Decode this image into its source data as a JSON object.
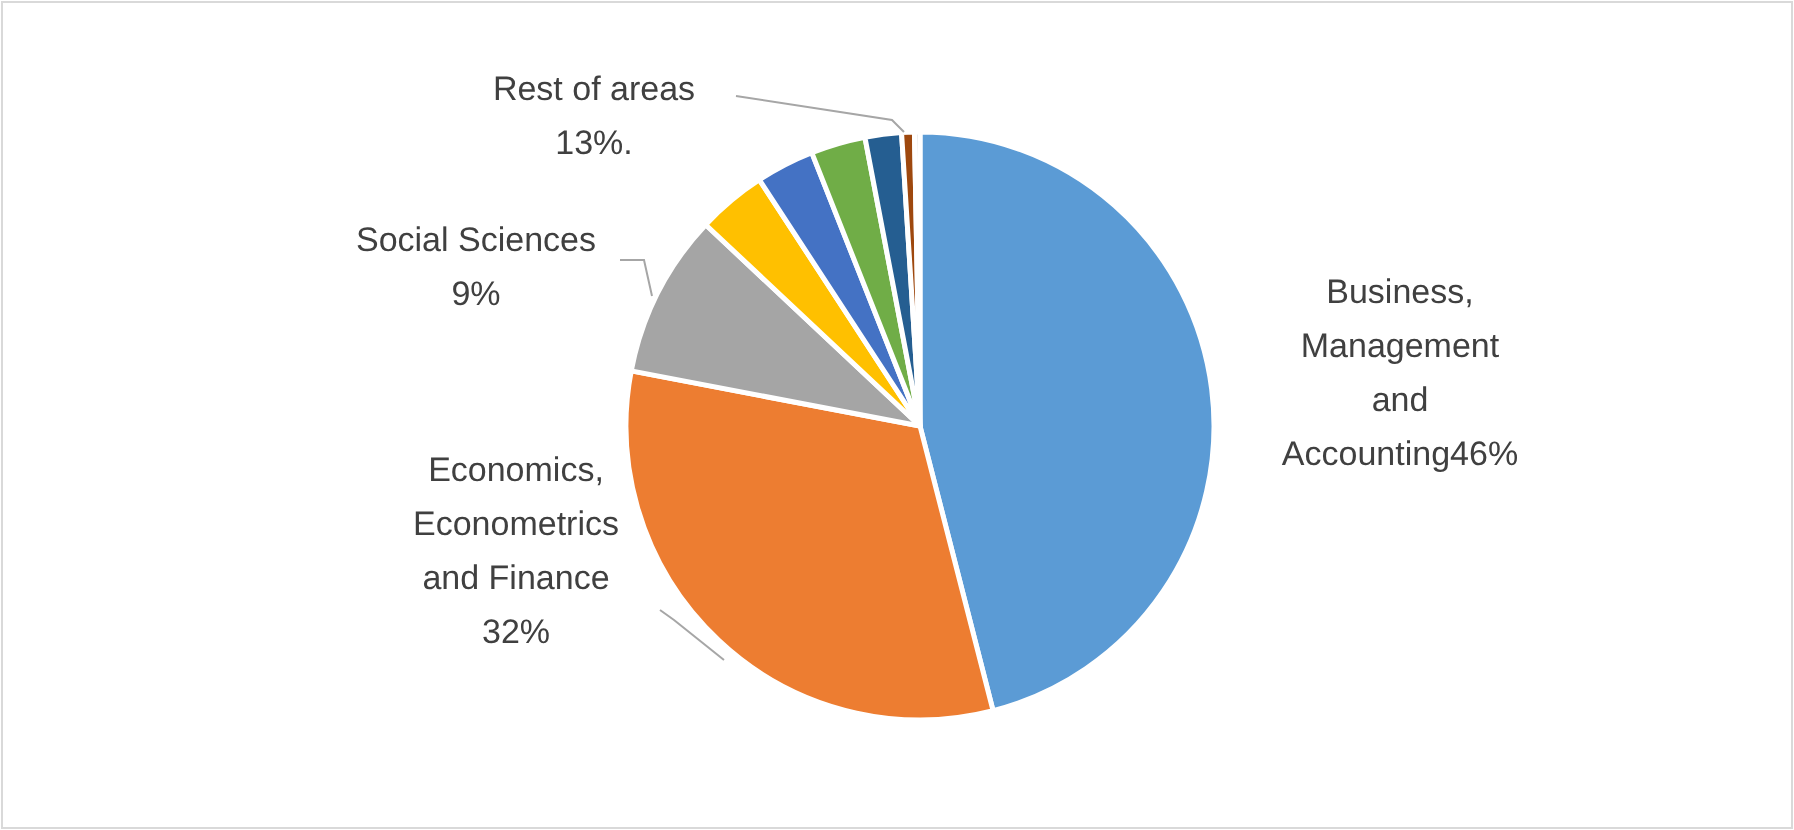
{
  "chart_data": {
    "type": "pie",
    "categories": [
      "Business, Management and Accounting",
      "Economics, Econometrics and Finance",
      "Social Sciences",
      null,
      null,
      null,
      null,
      null,
      null
    ],
    "values": [
      46,
      32,
      9,
      3.8,
      3.2,
      3,
      2,
      0.7,
      0.3
    ],
    "colors": [
      "#5b9bd5",
      "#ed7d31",
      "#a5a5a5",
      "#ffc000",
      "#4472c4",
      "#70ad47",
      "#255e91",
      "#9e480e",
      "#d9d9d9"
    ],
    "value_labels": [
      "46%",
      "32%",
      "9%",
      null,
      null,
      null,
      null,
      null,
      null
    ],
    "annotations": [
      "Rest of areas 13%."
    ]
  }
}
